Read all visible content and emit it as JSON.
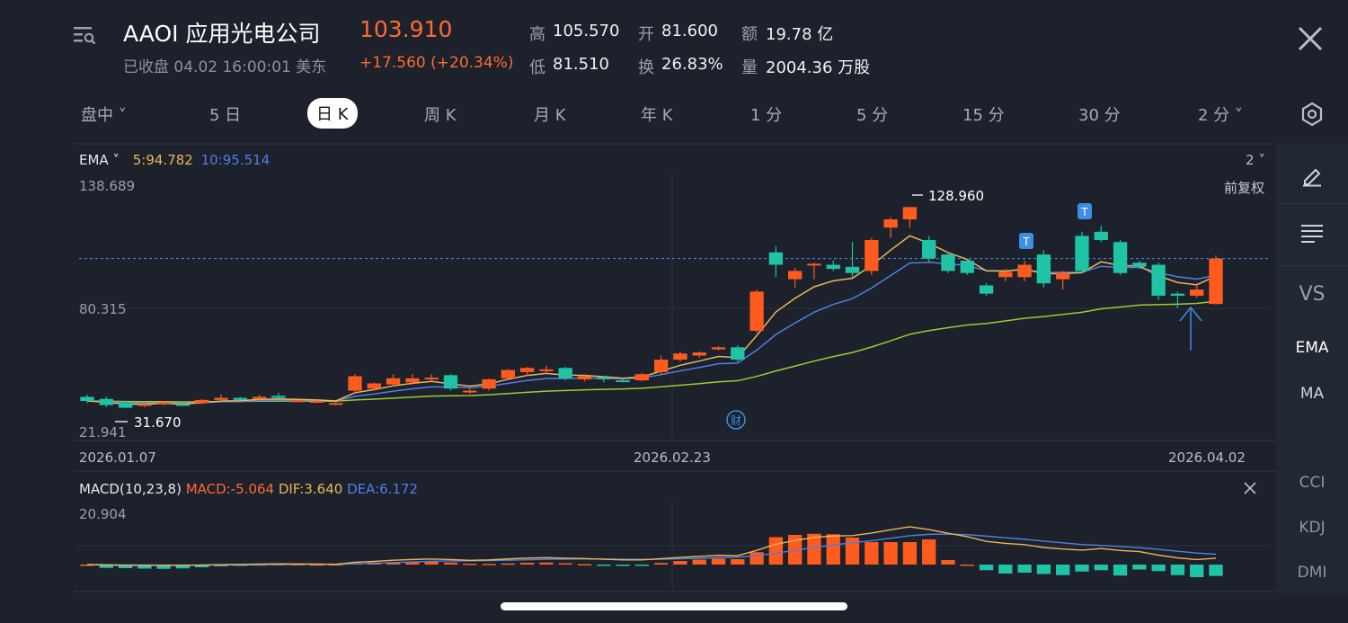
{
  "header": {
    "title": "AAOI 应用光电公司",
    "price": "103.910",
    "status": "已收盘 04.02 16:00:01 美东",
    "change": "+17.560 (+20.34%)",
    "stats": [
      {
        "label": "高",
        "value": "105.570"
      },
      {
        "label": "开",
        "value": "81.600"
      },
      {
        "label": "额",
        "value": "19.78 亿"
      },
      {
        "label": "低",
        "value": "81.510"
      },
      {
        "label": "换",
        "value": "26.83%"
      },
      {
        "label": "量",
        "value": "2004.36 万股"
      }
    ]
  },
  "tabs": [
    "盘中",
    "5 日",
    "日 K",
    "周 K",
    "月 K",
    "年 K",
    "1 分",
    "5 分",
    "15 分",
    "30 分",
    "2 分"
  ],
  "active_tab": "日 K",
  "sidebar": [
    "VS",
    "EMA",
    "MA",
    "CCI",
    "KDJ",
    "DMI"
  ],
  "indicator": {
    "name": "EMA",
    "ema5": "5:94.782",
    "ema10": "10:95.514",
    "period_selector": "2",
    "adjust": "前复权",
    "y_top": "138.689",
    "y_mid": "80.315",
    "y_bottom": "21.941",
    "high_marker": "128.960",
    "low_marker": "31.670",
    "marker_t": "T",
    "marker_cai": "财"
  },
  "dates": [
    "2026.01.07",
    "2026.02.23",
    "2026.04.02"
  ],
  "macd": {
    "name": "MACD(10,23,8)",
    "macd": "MACD:-5.064",
    "dif": "DIF:3.640",
    "dea": "DEA:6.172",
    "y_top": "20.904"
  },
  "colors": {
    "up": "#ff5b1f",
    "down": "#1fc3a6",
    "ema5": "#e8b75a",
    "ema10": "#4f7fe6",
    "ema_long": "#9acd32",
    "bg": "#1c212b"
  },
  "chart_data": {
    "type": "candlestick",
    "y_range": [
      21.941,
      138.689
    ],
    "candles": [
      {
        "o": 37,
        "c": 35,
        "h": 38,
        "l": 34
      },
      {
        "o": 36,
        "c": 33,
        "h": 37,
        "l": 32
      },
      {
        "o": 34,
        "c": 31.7,
        "h": 35,
        "l": 31.67
      },
      {
        "o": 33,
        "c": 33.5,
        "h": 34,
        "l": 32
      },
      {
        "o": 34,
        "c": 34.5,
        "h": 35,
        "l": 33
      },
      {
        "o": 33.5,
        "c": 33,
        "h": 34,
        "l": 32.5
      },
      {
        "o": 34,
        "c": 35.5,
        "h": 36,
        "l": 33.5
      },
      {
        "o": 35.5,
        "c": 36.5,
        "h": 38,
        "l": 35
      },
      {
        "o": 36.5,
        "c": 35.5,
        "h": 37,
        "l": 35
      },
      {
        "o": 36,
        "c": 37,
        "h": 38,
        "l": 35.5
      },
      {
        "o": 37.5,
        "c": 36.5,
        "h": 39,
        "l": 36
      },
      {
        "o": 35,
        "c": 35.3,
        "h": 35.5,
        "l": 34.5
      },
      {
        "o": 34.5,
        "c": 35,
        "h": 35.5,
        "l": 34
      },
      {
        "o": 33.5,
        "c": 34,
        "h": 34.5,
        "l": 33
      },
      {
        "o": 40,
        "c": 47,
        "h": 48,
        "l": 39
      },
      {
        "o": 41,
        "c": 43.5,
        "h": 44,
        "l": 40
      },
      {
        "o": 43,
        "c": 46,
        "h": 48,
        "l": 42
      },
      {
        "o": 44,
        "c": 46,
        "h": 48,
        "l": 43
      },
      {
        "o": 46,
        "c": 46.3,
        "h": 48,
        "l": 45
      },
      {
        "o": 47.5,
        "c": 41,
        "h": 48,
        "l": 40
      },
      {
        "o": 39.5,
        "c": 40,
        "h": 41,
        "l": 38.5
      },
      {
        "o": 41,
        "c": 45.5,
        "h": 46,
        "l": 40
      },
      {
        "o": 46,
        "c": 50,
        "h": 50.5,
        "l": 45
      },
      {
        "o": 49,
        "c": 51,
        "h": 51.5,
        "l": 47
      },
      {
        "o": 50,
        "c": 50.3,
        "h": 52,
        "l": 48
      },
      {
        "o": 51,
        "c": 46,
        "h": 51.5,
        "l": 45
      },
      {
        "o": 45.5,
        "c": 47,
        "h": 48,
        "l": 44.5
      },
      {
        "o": 46.5,
        "c": 45.5,
        "h": 47,
        "l": 44
      },
      {
        "o": 45,
        "c": 44.5,
        "h": 46,
        "l": 44
      },
      {
        "o": 45,
        "c": 48,
        "h": 48.5,
        "l": 44.5
      },
      {
        "o": 49,
        "c": 55,
        "h": 57,
        "l": 48
      },
      {
        "o": 55,
        "c": 58,
        "h": 59,
        "l": 54
      },
      {
        "o": 57,
        "c": 58.5,
        "h": 59,
        "l": 56
      },
      {
        "o": 60,
        "c": 61,
        "h": 61.5,
        "l": 59.5
      },
      {
        "o": 61,
        "c": 55,
        "h": 62,
        "l": 54
      },
      {
        "o": 69,
        "c": 88,
        "h": 89,
        "l": 68
      },
      {
        "o": 107,
        "c": 101,
        "h": 110,
        "l": 95
      },
      {
        "o": 94,
        "c": 98,
        "h": 99.5,
        "l": 90
      },
      {
        "o": 101,
        "c": 101.5,
        "h": 102,
        "l": 94
      },
      {
        "o": 101,
        "c": 99,
        "h": 103,
        "l": 98
      },
      {
        "o": 100,
        "c": 97,
        "h": 112,
        "l": 95
      },
      {
        "o": 98,
        "c": 113,
        "h": 114,
        "l": 96
      },
      {
        "o": 119,
        "c": 123,
        "h": 124,
        "l": 114
      },
      {
        "o": 123,
        "c": 128.96,
        "h": 128.96,
        "l": 119
      },
      {
        "o": 113,
        "c": 104,
        "h": 115,
        "l": 102
      },
      {
        "o": 106,
        "c": 98,
        "h": 107,
        "l": 97
      },
      {
        "o": 103,
        "c": 97,
        "h": 104,
        "l": 96
      },
      {
        "o": 91,
        "c": 87,
        "h": 92,
        "l": 86
      },
      {
        "o": 95,
        "c": 97.5,
        "h": 99,
        "l": 93
      },
      {
        "o": 95,
        "c": 101,
        "h": 103,
        "l": 93
      },
      {
        "o": 106,
        "c": 92,
        "h": 108,
        "l": 90
      },
      {
        "o": 94,
        "c": 97,
        "h": 98,
        "l": 89
      },
      {
        "o": 115,
        "c": 98,
        "h": 117,
        "l": 97
      },
      {
        "o": 117,
        "c": 113,
        "h": 120,
        "l": 112
      },
      {
        "o": 112,
        "c": 97,
        "h": 113,
        "l": 96
      },
      {
        "o": 102,
        "c": 100,
        "h": 103,
        "l": 99
      },
      {
        "o": 101,
        "c": 86,
        "h": 102,
        "l": 84
      },
      {
        "o": 87,
        "c": 86,
        "h": 88,
        "l": 80
      },
      {
        "o": 86,
        "c": 89,
        "h": 92,
        "l": 85
      },
      {
        "o": 82,
        "c": 104,
        "h": 105.57,
        "l": 81.51
      }
    ],
    "ema5_end": 94.782,
    "ema10_end": 95.514,
    "macd_top": 20.904,
    "macd_hist": [
      0,
      -1.5,
      -1.6,
      -1.8,
      -1.9,
      -1.7,
      -1.2,
      -0.8,
      -0.3,
      0.1,
      0.2,
      0.2,
      0.1,
      0.2,
      0.7,
      1.0,
      1.1,
      1.2,
      1.3,
      0.9,
      0.4,
      0.3,
      0.5,
      0.8,
      0.9,
      0.6,
      0.2,
      -0.2,
      -0.6,
      -0.1,
      0.7,
      1.6,
      2.2,
      2.7,
      2.4,
      5.5,
      12.2,
      13.2,
      13.7,
      13.5,
      12.0,
      10.0,
      10.0,
      10.0,
      11.2,
      2.0,
      0,
      -2.5,
      -4.0,
      -3.6,
      -4.2,
      -4.7,
      -3.1,
      -2.5,
      -4.9,
      -2.2,
      -2.9,
      -4.7,
      -5.6,
      -5.064
    ],
    "dif_end": 3.64,
    "dea_end": 6.172
  }
}
